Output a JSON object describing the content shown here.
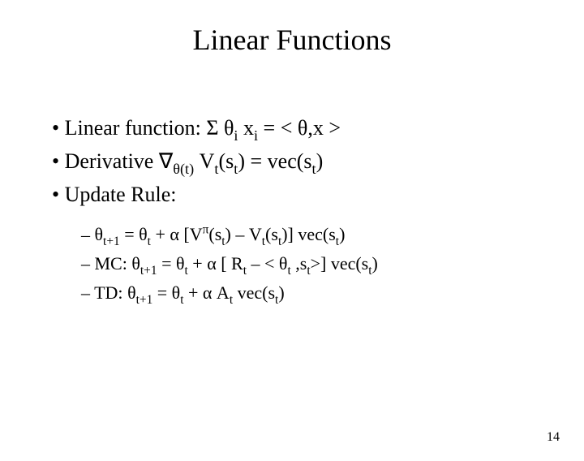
{
  "background_color": "#ffffff",
  "text_color": "#000000",
  "font_family": "Times New Roman",
  "title": {
    "text": "Linear Functions",
    "fontsize": 36
  },
  "bullets": {
    "fontsize": 26,
    "items": [
      {
        "prefix": "• ",
        "label": "Linear function: ",
        "expr": "Σ θ<sub>i</sub> x<sub>i</sub> = < θ,x >"
      },
      {
        "prefix": "• ",
        "label": "Derivative ",
        "expr": "∇<sub>θ(t)</sub> V<sub>t</sub>(s<sub>t</sub>) = vec(s<sub>t</sub>)"
      },
      {
        "prefix": "• ",
        "label": "Update Rule:",
        "expr": ""
      }
    ]
  },
  "sub_bullets": {
    "fontsize": 22,
    "items": [
      {
        "prefix": "– ",
        "expr": "θ<sub>t+1</sub> = θ<sub>t</sub> +  α [V<sup>π</sup>(s<sub>t</sub>) – V<sub>t</sub>(s<sub>t</sub>)] vec(s<sub>t</sub>)"
      },
      {
        "prefix": "– ",
        "label": "MC:  ",
        "expr": "θ<sub>t+1</sub> = θ<sub>t</sub> +  α [ R<sub>t</sub> – < θ<sub>t</sub> ,s<sub>t</sub>>] vec(s<sub>t</sub>)"
      },
      {
        "prefix": "– ",
        "label": "TD:   ",
        "expr": "θ<sub>t+1</sub> = θ<sub>t</sub> +  α A<sub>t</sub> vec(s<sub>t</sub>)"
      }
    ]
  },
  "page_number": "14",
  "page_number_fontsize": 16
}
